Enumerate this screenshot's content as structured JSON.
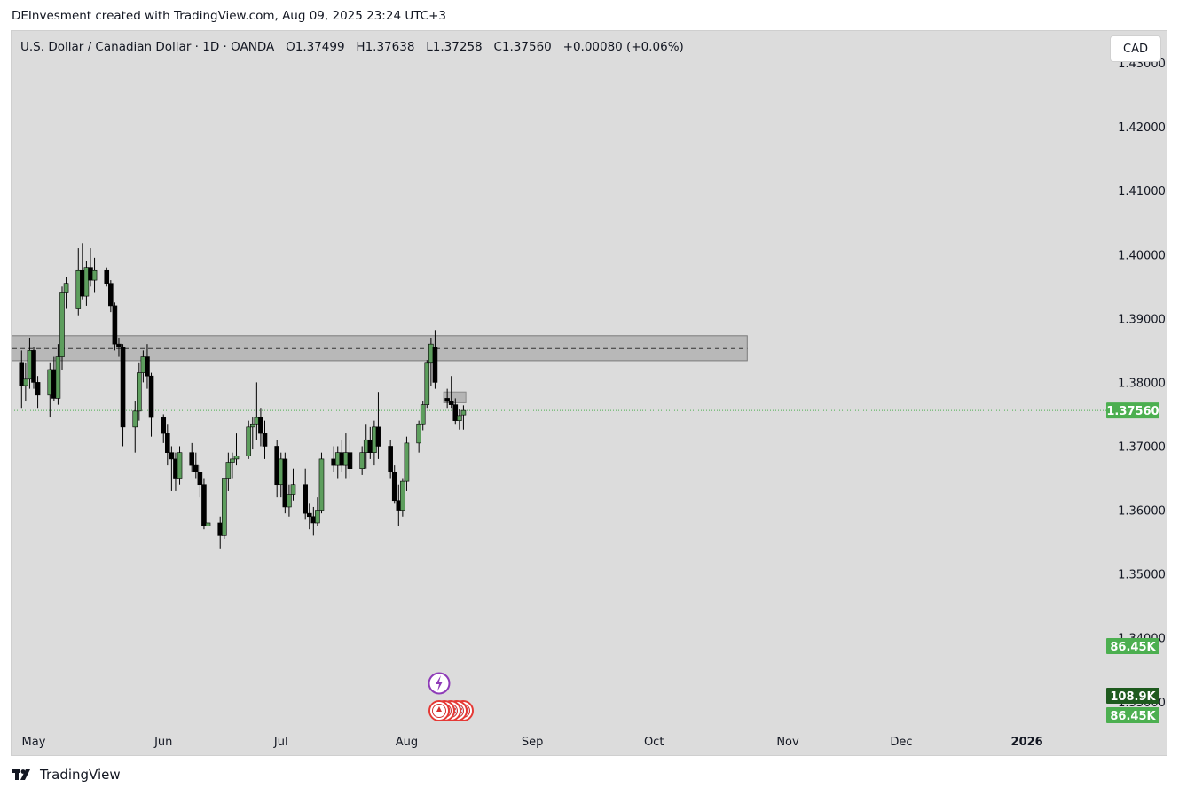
{
  "header": {
    "caption": "DEInvesment created with TradingView.com, Aug 09, 2025 23:24 UTC+3"
  },
  "chart_header": {
    "symbol_line": "U.S. Dollar / Canadian Dollar · 1D · OANDA   O1.37499   H1.37638   L1.37258   C1.37560   +0.00080 (+0.06%)",
    "currency_button": "CAD"
  },
  "footer": {
    "brand": "TradingView"
  },
  "colors": {
    "background": "#dcdcdc",
    "up_candle": "#5d9e5d",
    "down_candle": "#000000",
    "last_price_label": "#4caf50",
    "volume_label_light": "#4caf50",
    "volume_label_dark": "#1e5a1e",
    "zone_fill": "#a8a8a8"
  },
  "chart_data": {
    "type": "candlestick",
    "instrument": "U.S. Dollar / Canadian Dollar",
    "interval": "1D",
    "source": "OANDA",
    "y_ticks": [
      "1.43000",
      "1.42000",
      "1.41000",
      "1.40000",
      "1.39000",
      "1.38000",
      "1.37000",
      "1.36000",
      "1.35000",
      "1.34000",
      "1.33000"
    ],
    "ylim": [
      1.3265,
      1.435
    ],
    "x_labels": [
      {
        "label": "May",
        "date": "2025-05-01"
      },
      {
        "label": "Jun",
        "date": "2025-06-02"
      },
      {
        "label": "Jul",
        "date": "2025-07-01"
      },
      {
        "label": "Aug",
        "date": "2025-08-01"
      },
      {
        "label": "Sep",
        "date": "2025-09-01"
      },
      {
        "label": "Oct",
        "date": "2025-10-01"
      },
      {
        "label": "Nov",
        "date": "2025-11-03"
      },
      {
        "label": "Dec",
        "date": "2025-12-01"
      },
      {
        "label": "2026",
        "date": "2026-01-01"
      }
    ],
    "last_price": "1.37560",
    "volume_labels": [
      "86.45K",
      "108.9K",
      "86.45K"
    ],
    "resistance_zone": {
      "low": 1.3834,
      "high": 1.3873,
      "mid": 1.3853,
      "start": "2025-04-24",
      "end": "2025-10-24"
    },
    "candles": [
      [
        "2025-04-24",
        1.384,
        1.389,
        1.3825,
        1.386
      ],
      [
        "2025-04-25",
        1.386,
        1.388,
        1.382,
        1.383
      ],
      [
        "2025-04-28",
        1.383,
        1.385,
        1.376,
        1.3795
      ],
      [
        "2025-04-29",
        1.3795,
        1.383,
        1.377,
        1.3805
      ],
      [
        "2025-04-30",
        1.3805,
        1.387,
        1.379,
        1.385
      ],
      [
        "2025-05-01",
        1.385,
        1.3855,
        1.379,
        1.38
      ],
      [
        "2025-05-02",
        1.38,
        1.381,
        1.376,
        1.378
      ],
      [
        "2025-05-05",
        1.378,
        1.383,
        1.3745,
        1.382
      ],
      [
        "2025-05-06",
        1.382,
        1.384,
        1.377,
        1.3775
      ],
      [
        "2025-05-07",
        1.3775,
        1.386,
        1.3765,
        1.384
      ],
      [
        "2025-05-08",
        1.384,
        1.395,
        1.382,
        1.394
      ],
      [
        "2025-05-09",
        1.394,
        1.3965,
        1.3915,
        1.3955
      ],
      [
        "2025-05-12",
        1.3915,
        1.401,
        1.3905,
        1.3975
      ],
      [
        "2025-05-13",
        1.3975,
        1.4018,
        1.393,
        1.3935
      ],
      [
        "2025-05-14",
        1.3935,
        1.399,
        1.392,
        1.398
      ],
      [
        "2025-05-15",
        1.398,
        1.401,
        1.395,
        1.396
      ],
      [
        "2025-05-16",
        1.396,
        1.3995,
        1.394,
        1.3975
      ],
      [
        "2025-05-19",
        1.3975,
        1.398,
        1.395,
        1.3955
      ],
      [
        "2025-05-20",
        1.3955,
        1.396,
        1.391,
        1.392
      ],
      [
        "2025-05-21",
        1.392,
        1.3925,
        1.385,
        1.386
      ],
      [
        "2025-05-22",
        1.386,
        1.387,
        1.384,
        1.3855
      ],
      [
        "2025-05-23",
        1.3855,
        1.386,
        1.37,
        1.373
      ],
      [
        "2025-05-26",
        1.373,
        1.377,
        1.369,
        1.3755
      ],
      [
        "2025-05-27",
        1.3755,
        1.383,
        1.374,
        1.3815
      ],
      [
        "2025-05-28",
        1.3815,
        1.385,
        1.38,
        1.384
      ],
      [
        "2025-05-29",
        1.384,
        1.386,
        1.379,
        1.381
      ],
      [
        "2025-05-30",
        1.381,
        1.3815,
        1.3715,
        1.3745
      ],
      [
        "2025-06-02",
        1.3745,
        1.375,
        1.3705,
        1.372
      ],
      [
        "2025-06-03",
        1.372,
        1.3735,
        1.367,
        1.369
      ],
      [
        "2025-06-04",
        1.369,
        1.37,
        1.363,
        1.368
      ],
      [
        "2025-06-05",
        1.368,
        1.369,
        1.363,
        1.365
      ],
      [
        "2025-06-06",
        1.365,
        1.37,
        1.364,
        1.369
      ],
      [
        "2025-06-09",
        1.369,
        1.3705,
        1.366,
        1.367
      ],
      [
        "2025-06-10",
        1.367,
        1.369,
        1.365,
        1.366
      ],
      [
        "2025-06-11",
        1.366,
        1.367,
        1.362,
        1.364
      ],
      [
        "2025-06-12",
        1.364,
        1.365,
        1.357,
        1.3575
      ],
      [
        "2025-06-13",
        1.3575,
        1.36,
        1.3555,
        1.358
      ],
      [
        "2025-06-16",
        1.358,
        1.359,
        1.354,
        1.356
      ],
      [
        "2025-06-17",
        1.356,
        1.365,
        1.3555,
        1.365
      ],
      [
        "2025-06-18",
        1.365,
        1.369,
        1.363,
        1.3675
      ],
      [
        "2025-06-19",
        1.3675,
        1.369,
        1.365,
        1.368
      ],
      [
        "2025-06-20",
        1.368,
        1.372,
        1.367,
        1.3685
      ],
      [
        "2025-06-23",
        1.3685,
        1.374,
        1.368,
        1.373
      ],
      [
        "2025-06-24",
        1.373,
        1.3745,
        1.3695,
        1.3735
      ],
      [
        "2025-06-25",
        1.3735,
        1.38,
        1.371,
        1.3745
      ],
      [
        "2025-06-26",
        1.3745,
        1.376,
        1.37,
        1.372
      ],
      [
        "2025-06-27",
        1.372,
        1.374,
        1.368,
        1.37
      ],
      [
        "2025-06-30",
        1.37,
        1.371,
        1.362,
        1.364
      ],
      [
        "2025-07-01",
        1.364,
        1.369,
        1.362,
        1.368
      ],
      [
        "2025-07-02",
        1.368,
        1.369,
        1.3595,
        1.3605
      ],
      [
        "2025-07-03",
        1.3605,
        1.364,
        1.359,
        1.3625
      ],
      [
        "2025-07-04",
        1.3625,
        1.3665,
        1.3615,
        1.364
      ],
      [
        "2025-07-07",
        1.364,
        1.3665,
        1.3585,
        1.3595
      ],
      [
        "2025-07-08",
        1.3595,
        1.361,
        1.357,
        1.359
      ],
      [
        "2025-07-09",
        1.359,
        1.3605,
        1.356,
        1.358
      ],
      [
        "2025-07-10",
        1.358,
        1.362,
        1.3575,
        1.36
      ],
      [
        "2025-07-11",
        1.36,
        1.369,
        1.3595,
        1.368
      ],
      [
        "2025-07-14",
        1.368,
        1.37,
        1.366,
        1.367
      ],
      [
        "2025-07-15",
        1.367,
        1.37,
        1.365,
        1.369
      ],
      [
        "2025-07-16",
        1.369,
        1.371,
        1.366,
        1.367
      ],
      [
        "2025-07-17",
        1.367,
        1.372,
        1.365,
        1.369
      ],
      [
        "2025-07-18",
        1.369,
        1.371,
        1.365,
        1.3665
      ],
      [
        "2025-07-21",
        1.3665,
        1.37,
        1.3655,
        1.369
      ],
      [
        "2025-07-22",
        1.369,
        1.3735,
        1.3665,
        1.371
      ],
      [
        "2025-07-23",
        1.371,
        1.373,
        1.368,
        1.369
      ],
      [
        "2025-07-24",
        1.369,
        1.374,
        1.367,
        1.373
      ],
      [
        "2025-07-25",
        1.373,
        1.3785,
        1.368,
        1.37
      ],
      [
        "2025-07-28",
        1.37,
        1.371,
        1.365,
        1.366
      ],
      [
        "2025-07-29",
        1.366,
        1.367,
        1.361,
        1.3615
      ],
      [
        "2025-07-30",
        1.3615,
        1.364,
        1.3575,
        1.36
      ],
      [
        "2025-07-31",
        1.36,
        1.365,
        1.359,
        1.3645
      ],
      [
        "2025-08-01",
        1.3645,
        1.3715,
        1.363,
        1.3705
      ],
      [
        "2025-08-04",
        1.3705,
        1.374,
        1.369,
        1.3735
      ],
      [
        "2025-08-05",
        1.3735,
        1.377,
        1.3725,
        1.3765
      ],
      [
        "2025-08-06",
        1.3765,
        1.3835,
        1.376,
        1.383
      ],
      [
        "2025-08-07",
        1.383,
        1.387,
        1.3795,
        1.386
      ],
      [
        "2025-08-08",
        1.3855,
        1.3882,
        1.379,
        1.38
      ],
      [
        "2025-08-11",
        1.3775,
        1.379,
        1.376,
        1.377
      ],
      [
        "2025-08-12",
        1.377,
        1.381,
        1.376,
        1.3765
      ],
      [
        "2025-08-13",
        1.3765,
        1.3775,
        1.3735,
        1.374
      ],
      [
        "2025-08-14",
        1.374,
        1.3758,
        1.3726,
        1.3748
      ],
      [
        "2025-08-15",
        1.3749,
        1.3764,
        1.3726,
        1.3756
      ]
    ]
  }
}
